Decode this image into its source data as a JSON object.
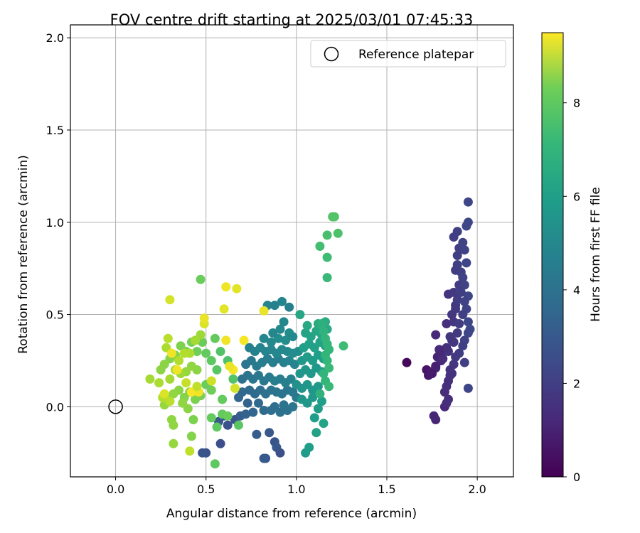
{
  "chart_data": {
    "type": "scatter",
    "title": "FOV centre drift starting at 2025/03/01 07:45:33",
    "xlabel": "Angular distance from reference (arcmin)",
    "ylabel": "Rotation from reference (arcmin)",
    "xlim": [
      -0.25,
      2.2
    ],
    "ylim": [
      -0.38,
      2.07
    ],
    "xticks": [
      0.0,
      0.5,
      1.0,
      1.5,
      2.0
    ],
    "xtick_labels": [
      "0.0",
      "0.5",
      "1.0",
      "1.5",
      "2.0"
    ],
    "yticks": [
      0.0,
      0.5,
      1.0,
      1.5,
      2.0
    ],
    "ytick_labels": [
      "0.0",
      "0.5",
      "1.0",
      "1.5",
      "2.0"
    ],
    "grid": true,
    "legend": {
      "position": "top-right",
      "entries": [
        "Reference platepar"
      ]
    },
    "reference_point": {
      "x": 0.0,
      "y": 0.0
    },
    "colorbar": {
      "label": "Hours from first FF file",
      "colormap": "viridis",
      "range": [
        0,
        9.5
      ],
      "ticks": [
        0,
        2,
        4,
        6,
        8
      ],
      "tick_labels": [
        "0",
        "2",
        "4",
        "6",
        "8"
      ]
    },
    "points_xyc": [
      [
        1.61,
        0.24,
        0.2
      ],
      [
        1.72,
        0.2,
        0.5
      ],
      [
        1.73,
        0.17,
        0.6
      ],
      [
        1.75,
        0.19,
        0.7
      ],
      [
        1.77,
        0.22,
        0.8
      ],
      [
        1.78,
        0.27,
        0.9
      ],
      [
        1.8,
        0.29,
        1.0
      ],
      [
        1.77,
        0.21,
        0.9
      ],
      [
        1.8,
        0.25,
        1.0
      ],
      [
        1.75,
        0.18,
        0.7
      ],
      [
        1.76,
        -0.05,
        1.0
      ],
      [
        1.77,
        -0.07,
        1.0
      ],
      [
        1.82,
        0.0,
        1.1
      ],
      [
        1.83,
        0.02,
        1.2
      ],
      [
        1.84,
        0.04,
        1.3
      ],
      [
        1.82,
        0.08,
        1.2
      ],
      [
        1.83,
        0.11,
        1.3
      ],
      [
        1.84,
        0.14,
        1.3
      ],
      [
        1.85,
        0.17,
        1.4
      ],
      [
        1.86,
        0.18,
        1.4
      ],
      [
        1.87,
        0.23,
        1.5
      ],
      [
        1.84,
        0.3,
        1.4
      ],
      [
        1.83,
        0.32,
        1.3
      ],
      [
        1.86,
        0.36,
        1.4
      ],
      [
        1.85,
        0.38,
        1.5
      ],
      [
        1.77,
        0.39,
        1.1
      ],
      [
        1.83,
        0.45,
        1.3
      ],
      [
        1.87,
        0.46,
        1.5
      ],
      [
        1.86,
        0.5,
        1.5
      ],
      [
        1.88,
        0.53,
        1.6
      ],
      [
        1.84,
        0.61,
        1.4
      ],
      [
        1.88,
        0.55,
        1.6
      ],
      [
        1.89,
        0.58,
        1.7
      ],
      [
        1.87,
        0.62,
        1.6
      ],
      [
        1.9,
        0.66,
        1.7
      ],
      [
        1.88,
        0.74,
        1.7
      ],
      [
        1.89,
        0.77,
        1.8
      ],
      [
        1.91,
        0.73,
        1.8
      ],
      [
        1.92,
        0.7,
        1.9
      ],
      [
        1.93,
        0.66,
        1.9
      ],
      [
        1.95,
        0.6,
        2.0
      ],
      [
        1.94,
        0.53,
        1.9
      ],
      [
        1.95,
        0.46,
        2.0
      ],
      [
        1.96,
        0.42,
        2.1
      ],
      [
        1.95,
        0.4,
        2.0
      ],
      [
        1.93,
        0.36,
        1.9
      ],
      [
        1.92,
        0.33,
        1.8
      ],
      [
        1.9,
        0.29,
        1.7
      ],
      [
        1.93,
        0.24,
        1.8
      ],
      [
        1.95,
        0.1,
        2.0
      ],
      [
        1.89,
        0.82,
        1.8
      ],
      [
        1.9,
        0.86,
        1.8
      ],
      [
        1.87,
        0.92,
        1.8
      ],
      [
        1.89,
        0.95,
        1.8
      ],
      [
        1.92,
        0.89,
        1.9
      ],
      [
        1.93,
        0.85,
        1.9
      ],
      [
        1.94,
        0.98,
        2.0
      ],
      [
        1.95,
        1.0,
        2.0
      ],
      [
        1.95,
        1.11,
        2.0
      ],
      [
        1.94,
        0.78,
        2.0
      ],
      [
        1.9,
        0.45,
        1.7
      ],
      [
        1.89,
        0.4,
        1.6
      ],
      [
        1.87,
        0.35,
        1.5
      ],
      [
        1.92,
        0.5,
        1.8
      ],
      [
        1.91,
        0.62,
        1.8
      ],
      [
        1.93,
        0.57,
        1.9
      ],
      [
        1.81,
        0.26,
        1.2
      ],
      [
        1.79,
        0.31,
        1.1
      ],
      [
        1.85,
        0.2,
        1.4
      ],
      [
        1.88,
        0.27,
        1.6
      ],
      [
        0.82,
        -0.28,
        2.6
      ],
      [
        0.83,
        -0.28,
        2.7
      ],
      [
        0.85,
        -0.14,
        2.6
      ],
      [
        0.78,
        -0.15,
        2.8
      ],
      [
        0.88,
        -0.19,
        2.5
      ],
      [
        0.89,
        -0.22,
        2.6
      ],
      [
        0.91,
        -0.25,
        2.4
      ],
      [
        0.58,
        -0.2,
        2.3
      ],
      [
        0.62,
        -0.1,
        2.4
      ],
      [
        0.66,
        -0.07,
        2.5
      ],
      [
        0.5,
        -0.25,
        2.4
      ],
      [
        0.48,
        -0.25,
        2.5
      ],
      [
        0.57,
        -0.08,
        2.6
      ],
      [
        0.6,
        -0.05,
        2.7
      ],
      [
        0.69,
        -0.05,
        2.8
      ],
      [
        0.72,
        -0.04,
        3.0
      ],
      [
        0.76,
        -0.03,
        3.1
      ],
      [
        0.79,
        0.02,
        3.2
      ],
      [
        0.82,
        -0.02,
        3.3
      ],
      [
        0.86,
        -0.02,
        3.4
      ],
      [
        0.88,
        0.0,
        3.4
      ],
      [
        0.91,
        -0.03,
        3.5
      ],
      [
        0.93,
        0.01,
        3.6
      ],
      [
        0.95,
        -0.02,
        3.6
      ],
      [
        0.98,
        0.0,
        3.7
      ],
      [
        0.73,
        0.02,
        3.0
      ],
      [
        0.68,
        0.05,
        3.1
      ],
      [
        0.7,
        0.08,
        3.2
      ],
      [
        0.74,
        0.09,
        3.3
      ],
      [
        0.77,
        0.07,
        3.3
      ],
      [
        0.8,
        0.09,
        3.4
      ],
      [
        0.83,
        0.07,
        3.5
      ],
      [
        0.86,
        0.09,
        3.6
      ],
      [
        0.89,
        0.08,
        3.6
      ],
      [
        0.92,
        0.07,
        3.7
      ],
      [
        0.95,
        0.09,
        3.7
      ],
      [
        0.98,
        0.08,
        3.8
      ],
      [
        1.0,
        0.05,
        3.8
      ],
      [
        0.7,
        0.15,
        3.5
      ],
      [
        0.73,
        0.17,
        3.6
      ],
      [
        0.76,
        0.15,
        3.7
      ],
      [
        0.79,
        0.17,
        3.8
      ],
      [
        0.82,
        0.14,
        3.8
      ],
      [
        0.85,
        0.16,
        3.9
      ],
      [
        0.88,
        0.14,
        4.0
      ],
      [
        0.91,
        0.15,
        4.0
      ],
      [
        0.94,
        0.13,
        4.1
      ],
      [
        0.97,
        0.15,
        4.2
      ],
      [
        0.72,
        0.23,
        3.7
      ],
      [
        0.75,
        0.25,
        3.8
      ],
      [
        0.78,
        0.22,
        3.9
      ],
      [
        0.81,
        0.24,
        4.0
      ],
      [
        0.84,
        0.26,
        4.0
      ],
      [
        0.87,
        0.24,
        4.1
      ],
      [
        0.9,
        0.26,
        4.1
      ],
      [
        0.93,
        0.24,
        4.2
      ],
      [
        0.96,
        0.25,
        4.3
      ],
      [
        0.99,
        0.23,
        4.3
      ],
      [
        0.74,
        0.32,
        4.2
      ],
      [
        0.77,
        0.3,
        4.2
      ],
      [
        0.8,
        0.32,
        4.3
      ],
      [
        0.83,
        0.3,
        4.3
      ],
      [
        0.86,
        0.31,
        4.4
      ],
      [
        0.89,
        0.29,
        4.4
      ],
      [
        0.92,
        0.31,
        4.5
      ],
      [
        0.95,
        0.3,
        4.5
      ],
      [
        0.98,
        0.29,
        4.6
      ],
      [
        1.01,
        0.3,
        4.6
      ],
      [
        0.82,
        0.37,
        4.4
      ],
      [
        0.86,
        0.35,
        4.5
      ],
      [
        0.9,
        0.37,
        4.6
      ],
      [
        0.94,
        0.36,
        4.6
      ],
      [
        0.96,
        0.4,
        4.6
      ],
      [
        0.98,
        0.38,
        4.5
      ],
      [
        0.87,
        0.4,
        4.4
      ],
      [
        0.91,
        0.42,
        4.5
      ],
      [
        0.93,
        0.46,
        4.4
      ],
      [
        0.84,
        0.55,
        4.3
      ],
      [
        0.88,
        0.55,
        4.2
      ],
      [
        0.92,
        0.57,
        4.3
      ],
      [
        0.96,
        0.54,
        4.1
      ],
      [
        1.0,
        0.12,
        4.8
      ],
      [
        1.03,
        0.1,
        4.9
      ],
      [
        1.06,
        0.12,
        5.0
      ],
      [
        1.09,
        0.09,
        5.0
      ],
      [
        1.12,
        0.11,
        5.1
      ],
      [
        1.02,
        0.18,
        4.9
      ],
      [
        1.05,
        0.2,
        5.0
      ],
      [
        1.08,
        0.18,
        5.1
      ],
      [
        1.11,
        0.21,
        5.1
      ],
      [
        1.14,
        0.19,
        5.2
      ],
      [
        1.03,
        0.25,
        5.1
      ],
      [
        1.06,
        0.27,
        5.2
      ],
      [
        1.09,
        0.25,
        5.2
      ],
      [
        1.12,
        0.28,
        5.3
      ],
      [
        1.15,
        0.26,
        5.3
      ],
      [
        1.04,
        0.32,
        5.3
      ],
      [
        1.07,
        0.34,
        5.4
      ],
      [
        1.1,
        0.32,
        5.4
      ],
      [
        1.13,
        0.35,
        5.5
      ],
      [
        1.16,
        0.33,
        5.5
      ],
      [
        1.05,
        0.4,
        5.5
      ],
      [
        1.08,
        0.38,
        5.5
      ],
      [
        1.11,
        0.41,
        5.6
      ],
      [
        1.14,
        0.39,
        5.6
      ],
      [
        1.17,
        0.42,
        5.7
      ],
      [
        1.02,
        0.5,
        5.6
      ],
      [
        1.06,
        0.44,
        5.7
      ],
      [
        1.12,
        0.45,
        5.8
      ],
      [
        1.16,
        0.46,
        5.9
      ],
      [
        1.03,
        0.04,
        5.0
      ],
      [
        1.06,
        0.02,
        5.0
      ],
      [
        1.09,
        0.05,
        5.1
      ],
      [
        1.12,
        -0.01,
        5.2
      ],
      [
        1.14,
        0.03,
        5.3
      ],
      [
        1.1,
        -0.06,
        5.3
      ],
      [
        1.05,
        -0.25,
        5.2
      ],
      [
        1.07,
        -0.22,
        5.3
      ],
      [
        1.11,
        -0.14,
        5.4
      ],
      [
        1.15,
        -0.09,
        5.5
      ],
      [
        1.14,
        0.45,
        6.0
      ],
      [
        1.15,
        0.41,
        6.1
      ],
      [
        1.16,
        0.37,
        6.2
      ],
      [
        1.17,
        0.34,
        6.2
      ],
      [
        1.18,
        0.31,
        6.3
      ],
      [
        1.16,
        0.28,
        6.2
      ],
      [
        1.17,
        0.25,
        6.3
      ],
      [
        1.18,
        0.21,
        6.4
      ],
      [
        1.15,
        0.18,
        6.2
      ],
      [
        1.16,
        0.14,
        6.3
      ],
      [
        1.18,
        0.11,
        6.4
      ],
      [
        1.13,
        0.07,
        6.1
      ],
      [
        1.26,
        0.33,
        6.5
      ],
      [
        1.17,
        0.7,
        6.4
      ],
      [
        1.17,
        0.81,
        6.5
      ],
      [
        1.13,
        0.87,
        6.6
      ],
      [
        1.17,
        0.93,
        6.7
      ],
      [
        1.23,
        0.94,
        6.8
      ],
      [
        1.2,
        1.03,
        6.9
      ],
      [
        1.21,
        1.03,
        6.9
      ],
      [
        0.62,
        0.25,
        6.8
      ],
      [
        0.65,
        0.15,
        6.9
      ],
      [
        0.58,
        0.3,
        6.9
      ],
      [
        0.56,
        0.2,
        7.0
      ],
      [
        0.53,
        0.25,
        7.1
      ],
      [
        0.5,
        0.29,
        7.2
      ],
      [
        0.47,
        0.69,
        7.3
      ],
      [
        0.55,
        0.37,
        7.2
      ],
      [
        0.48,
        0.35,
        7.3
      ],
      [
        0.45,
        0.3,
        7.4
      ],
      [
        0.42,
        0.35,
        7.5
      ],
      [
        0.39,
        0.3,
        7.5
      ],
      [
        0.36,
        0.33,
        7.6
      ],
      [
        0.33,
        0.28,
        7.7
      ],
      [
        0.3,
        0.26,
        7.7
      ],
      [
        0.27,
        0.23,
        7.8
      ],
      [
        0.25,
        0.2,
        7.8
      ],
      [
        0.5,
        0.12,
        7.3
      ],
      [
        0.53,
        0.09,
        7.4
      ],
      [
        0.47,
        0.06,
        7.5
      ],
      [
        0.44,
        0.04,
        7.6
      ],
      [
        0.41,
        0.08,
        7.7
      ],
      [
        0.38,
        0.05,
        7.7
      ],
      [
        0.35,
        0.09,
        7.8
      ],
      [
        0.32,
        0.07,
        7.9
      ],
      [
        0.29,
        0.04,
        7.9
      ],
      [
        0.27,
        0.01,
        8.0
      ],
      [
        0.59,
        0.04,
        7.2
      ],
      [
        0.56,
        -0.11,
        7.1
      ],
      [
        0.53,
        -0.06,
        7.2
      ],
      [
        0.59,
        -0.04,
        7.2
      ],
      [
        0.62,
        -0.05,
        7.3
      ],
      [
        0.55,
        -0.31,
        7.1
      ],
      [
        0.43,
        -0.07,
        7.6
      ],
      [
        0.42,
        -0.16,
        7.7
      ],
      [
        0.31,
        -0.07,
        7.9
      ],
      [
        0.32,
        -0.1,
        7.9
      ],
      [
        0.32,
        -0.2,
        8.0
      ],
      [
        0.4,
        -0.01,
        7.8
      ],
      [
        0.37,
        0.02,
        7.9
      ],
      [
        0.45,
        0.2,
        7.8
      ],
      [
        0.42,
        0.22,
        7.9
      ],
      [
        0.39,
        0.19,
        8.0
      ],
      [
        0.36,
        0.18,
        8.1
      ],
      [
        0.33,
        0.2,
        8.1
      ],
      [
        0.3,
        0.15,
        8.2
      ],
      [
        0.24,
        0.13,
        8.3
      ],
      [
        0.28,
        0.32,
        8.3
      ],
      [
        0.19,
        0.15,
        8.2
      ],
      [
        0.47,
        0.39,
        8.1
      ],
      [
        0.44,
        0.36,
        8.2
      ],
      [
        0.41,
        0.29,
        8.3
      ],
      [
        0.38,
        0.29,
        8.4
      ],
      [
        0.35,
        0.25,
        8.4
      ],
      [
        0.29,
        0.37,
        8.5
      ],
      [
        0.26,
        0.05,
        8.4
      ],
      [
        0.3,
        0.03,
        8.5
      ],
      [
        0.41,
        -0.24,
        8.6
      ],
      [
        0.68,
        -0.1,
        7.0
      ],
      [
        0.66,
        0.1,
        8.9
      ],
      [
        0.61,
        0.36,
        9.3
      ],
      [
        0.49,
        0.45,
        9.0
      ],
      [
        0.49,
        0.48,
        9.2
      ],
      [
        0.6,
        0.53,
        9.1
      ],
      [
        0.3,
        0.58,
        8.9
      ],
      [
        0.61,
        0.65,
        9.3
      ],
      [
        0.67,
        0.64,
        9.1
      ],
      [
        0.82,
        0.52,
        9.2
      ],
      [
        0.71,
        0.36,
        9.4
      ],
      [
        0.31,
        0.29,
        9.3
      ],
      [
        0.34,
        0.2,
        9.3
      ],
      [
        0.42,
        0.08,
        9.4
      ],
      [
        0.46,
        0.08,
        9.3
      ],
      [
        0.65,
        0.2,
        9.4
      ],
      [
        0.63,
        0.22,
        9.2
      ],
      [
        0.27,
        0.07,
        9.0
      ],
      [
        0.53,
        0.14,
        8.8
      ],
      [
        0.39,
        0.13,
        8.7
      ],
      [
        0.45,
        0.11,
        8.6
      ]
    ]
  }
}
